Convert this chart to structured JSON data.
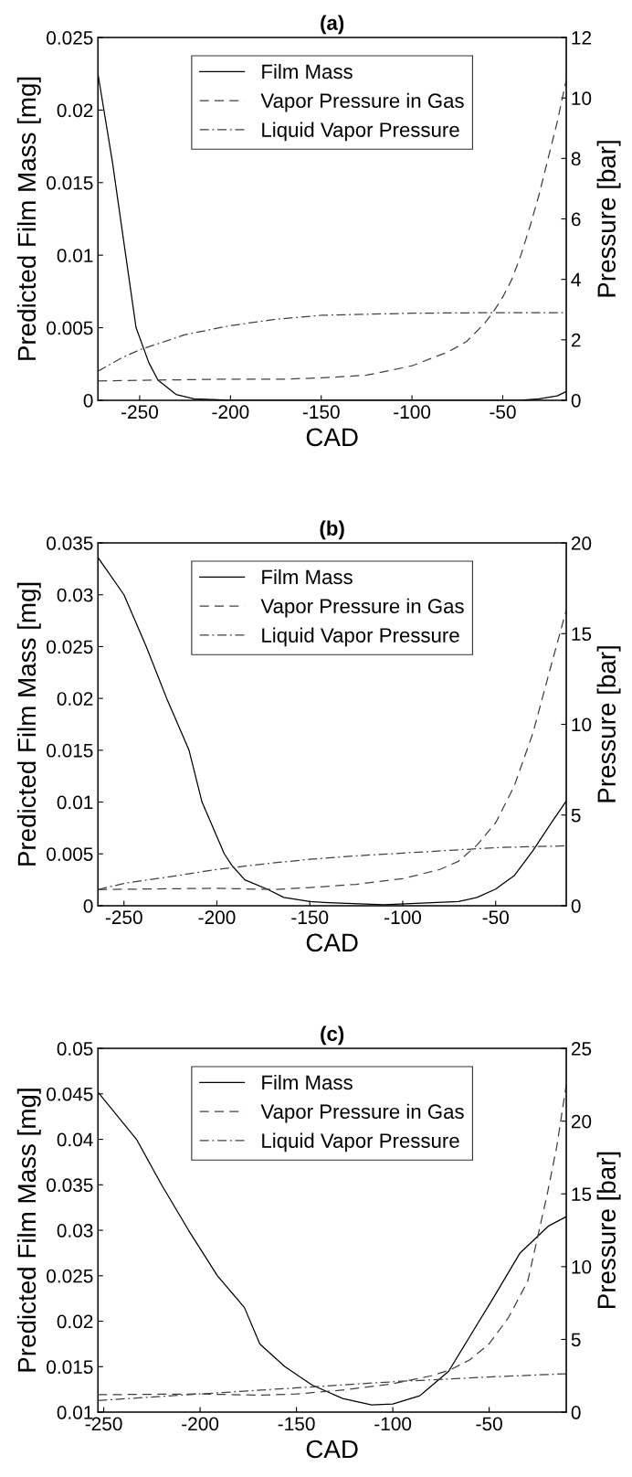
{
  "chart_data": [
    {
      "type": "line",
      "title": "(a)",
      "xlabel": "CAD",
      "ylabel": "Predicted Film Mass [mg]",
      "y2label": "Pressure [bar]",
      "xlim": [
        -273,
        -15
      ],
      "xticks": [
        -250,
        -200,
        -150,
        -100,
        -50
      ],
      "ylim": [
        0,
        0.025
      ],
      "yticks": [
        0,
        0.005,
        0.01,
        0.015,
        0.02,
        0.025
      ],
      "y2lim": [
        0,
        12
      ],
      "y2ticks": [
        0,
        2,
        4,
        6,
        8,
        10,
        12
      ],
      "legend": "top",
      "grid": false,
      "series": [
        {
          "name": "Film Mass",
          "color": "#000000",
          "line_style": "solid",
          "x": [
            -273,
            -265,
            -260,
            -252,
            -245,
            -240,
            -230,
            -220,
            -200,
            -100,
            -40,
            -30,
            -20,
            -15
          ],
          "values": [
            0.0225,
            0.0164,
            0.012,
            0.005,
            0.0026,
            0.0014,
            0.0004,
            0.0001,
            0,
            0,
            0,
            0.0001,
            0.0003,
            0.0006
          ]
        },
        {
          "name": "Vapor Pressure in Gas",
          "color": "#404040",
          "line_style": "dashed",
          "axis": "y2",
          "x": [
            -273,
            -200,
            -170,
            -150,
            -125,
            -100,
            -80,
            -70,
            -60,
            -55,
            -50,
            -45,
            -40,
            -35,
            -30,
            -25,
            -20,
            -15
          ],
          "values": [
            0.64,
            0.7,
            0.7,
            0.74,
            0.83,
            1.14,
            1.6,
            1.94,
            2.54,
            2.94,
            3.41,
            4.0,
            4.8,
            5.75,
            6.8,
            8.0,
            9.2,
            10.6
          ]
        },
        {
          "name": "Liquid Vapor Pressure",
          "color": "#404040",
          "line_style": "dashdot",
          "axis": "y2",
          "x": [
            -273,
            -260,
            -250,
            -240,
            -225,
            -200,
            -175,
            -150,
            -100,
            -50,
            -15
          ],
          "values": [
            0.96,
            1.4,
            1.67,
            1.87,
            2.17,
            2.47,
            2.68,
            2.81,
            2.88,
            2.9,
            2.9
          ]
        }
      ]
    },
    {
      "type": "line",
      "title": "(b)",
      "xlabel": "CAD",
      "ylabel": "Predicted Film Mass [mg]",
      "y2label": "Pressure [bar]",
      "xlim": [
        -264,
        -12
      ],
      "xticks": [
        -250,
        -200,
        -150,
        -100,
        -50
      ],
      "ylim": [
        0,
        0.035
      ],
      "yticks": [
        0,
        0.005,
        0.01,
        0.015,
        0.02,
        0.025,
        0.03,
        0.035
      ],
      "y2lim": [
        0,
        20
      ],
      "y2ticks": [
        0,
        5,
        10,
        15,
        20
      ],
      "legend": "top",
      "grid": false,
      "series": [
        {
          "name": "Film Mass",
          "color": "#000000",
          "line_style": "solid",
          "x": [
            -264,
            -250,
            -238,
            -227,
            -215,
            -208,
            -196,
            -192,
            -185,
            -173,
            -164,
            -150,
            -140,
            -110,
            -70,
            -60,
            -50,
            -40,
            -30,
            -20,
            -12
          ],
          "values": [
            0.0336,
            0.03,
            0.025,
            0.02,
            0.015,
            0.01,
            0.005,
            0.0039,
            0.0025,
            0.0016,
            0.0008,
            0.0004,
            0.0003,
            0.0001,
            0.0004,
            0.0008,
            0.0016,
            0.0029,
            0.0053,
            0.008,
            0.0101
          ]
        },
        {
          "name": "Vapor Pressure in Gas",
          "color": "#404040",
          "line_style": "dashed",
          "axis": "y2",
          "x": [
            -264,
            -200,
            -170,
            -150,
            -125,
            -100,
            -80,
            -70,
            -60,
            -50,
            -40,
            -30,
            -20,
            -12
          ],
          "values": [
            0.89,
            0.96,
            0.89,
            1.0,
            1.18,
            1.49,
            2.0,
            2.45,
            3.34,
            4.57,
            6.6,
            9.5,
            13.3,
            16.3
          ]
        },
        {
          "name": "Liquid Vapor Pressure",
          "color": "#404040",
          "line_style": "dashdot",
          "axis": "y2",
          "x": [
            -264,
            -250,
            -225,
            -200,
            -175,
            -150,
            -125,
            -100,
            -75,
            -50,
            -12
          ],
          "values": [
            0.89,
            1.23,
            1.6,
            2.0,
            2.3,
            2.56,
            2.75,
            2.9,
            3.05,
            3.2,
            3.3
          ]
        }
      ]
    },
    {
      "type": "line",
      "title": "(c)",
      "xlabel": "CAD",
      "ylabel": "Predicted Film Mass [mg]",
      "y2label": "Pressure [bar]",
      "xlim": [
        -253,
        -10
      ],
      "xticks": [
        -250,
        -200,
        -150,
        -100,
        -50
      ],
      "ylim": [
        0.01,
        0.05
      ],
      "yticks": [
        0.01,
        0.015,
        0.02,
        0.025,
        0.03,
        0.035,
        0.04,
        0.045,
        0.05
      ],
      "y2lim": [
        0,
        25
      ],
      "y2ticks": [
        0,
        5,
        10,
        15,
        20,
        25
      ],
      "legend": "top",
      "grid": false,
      "series": [
        {
          "name": "Film Mass",
          "color": "#000000",
          "line_style": "solid",
          "x": [
            -253,
            -233,
            -220,
            -206,
            -191,
            -177,
            -169,
            -156,
            -142,
            -126,
            -111,
            -100,
            -86,
            -71,
            -61,
            -48,
            -34,
            -19,
            -10
          ],
          "values": [
            0.0452,
            0.04,
            0.035,
            0.03,
            0.025,
            0.0215,
            0.0175,
            0.015,
            0.013,
            0.0115,
            0.0108,
            0.0109,
            0.0118,
            0.0145,
            0.018,
            0.0225,
            0.0275,
            0.0305,
            0.0315
          ]
        },
        {
          "name": "Vapor Pressure in Gas",
          "color": "#404040",
          "line_style": "dashed",
          "axis": "y2",
          "x": [
            -253,
            -200,
            -170,
            -150,
            -125,
            -100,
            -80,
            -70,
            -60,
            -50,
            -40,
            -30,
            -20,
            -15,
            -10
          ],
          "values": [
            1.2,
            1.25,
            1.17,
            1.25,
            1.53,
            1.95,
            2.5,
            2.92,
            3.6,
            4.7,
            6.5,
            9.0,
            14.9,
            18.2,
            22.5
          ]
        },
        {
          "name": "Liquid Vapor Pressure",
          "color": "#404040",
          "line_style": "dashdot",
          "axis": "y2",
          "x": [
            -253,
            -200,
            -150,
            -100,
            -50,
            -10
          ],
          "values": [
            0.8,
            1.25,
            1.67,
            2.09,
            2.42,
            2.64
          ]
        }
      ]
    }
  ]
}
